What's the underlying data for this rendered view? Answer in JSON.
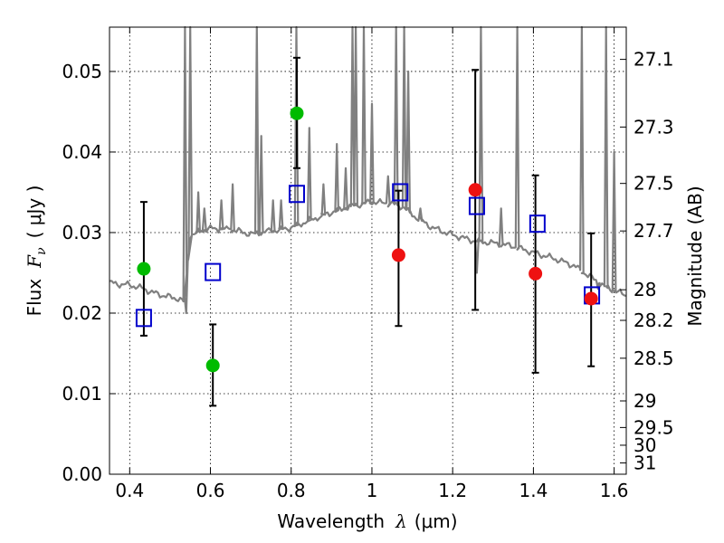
{
  "chart_data": {
    "type": "scatter",
    "xlabel": {
      "prefix": "Wavelength",
      "symbol": "λ",
      "unit": "(μm)"
    },
    "ylabel": {
      "prefix": "Flux",
      "symbol": "F",
      "subscript": "ν",
      "unit": "( μJy )"
    },
    "ylabel_right": "Magnitude (AB)",
    "xlim": [
      0.35,
      1.63
    ],
    "ylim": [
      0.0,
      0.0555
    ],
    "x_ticks": [
      0.4,
      0.6,
      0.8,
      1.0,
      1.2,
      1.4,
      1.6
    ],
    "x_tick_labels": [
      "0.4",
      "0.6",
      "0.8",
      "1",
      "1.2",
      "1.4",
      "1.6"
    ],
    "y_ticks": [
      0.0,
      0.01,
      0.02,
      0.03,
      0.04,
      0.05
    ],
    "y_tick_labels": [
      "0.00",
      "0.01",
      "0.02",
      "0.03",
      "0.04",
      "0.05"
    ],
    "right_axis_ticks": [
      {
        "label": "27.1",
        "flux": 0.0515
      },
      {
        "label": "27.3",
        "flux": 0.0431
      },
      {
        "label": "27.5",
        "flux": 0.0361
      },
      {
        "label": "27.7",
        "flux": 0.0302
      },
      {
        "label": "28",
        "flux": 0.0229
      },
      {
        "label": "28.2",
        "flux": 0.0191
      },
      {
        "label": "28.5",
        "flux": 0.0144
      },
      {
        "label": "29",
        "flux": 0.0091
      },
      {
        "label": "29.5",
        "flux": 0.0058
      },
      {
        "label": "30",
        "flux": 0.0036
      },
      {
        "label": "31",
        "flux": 0.0014
      }
    ],
    "grid": true,
    "colors": {
      "model": "#808080",
      "detection": "#00bb00",
      "low_significance": "#ee1111",
      "model_photometry": "#0000cc",
      "errorbar": "#000000"
    },
    "model_spectrum": {
      "continuum": [
        [
          0.35,
          0.0238
        ],
        [
          0.37,
          0.0236
        ],
        [
          0.4,
          0.0235
        ],
        [
          0.43,
          0.0231
        ],
        [
          0.46,
          0.0225
        ],
        [
          0.49,
          0.0221
        ],
        [
          0.52,
          0.0218
        ],
        [
          0.535,
          0.0214
        ],
        [
          0.55,
          0.0296
        ],
        [
          0.58,
          0.0303
        ],
        [
          0.6,
          0.0305
        ],
        [
          0.65,
          0.0304
        ],
        [
          0.7,
          0.0298
        ],
        [
          0.75,
          0.0302
        ],
        [
          0.8,
          0.0306
        ],
        [
          0.85,
          0.0316
        ],
        [
          0.9,
          0.0325
        ],
        [
          0.95,
          0.0333
        ],
        [
          1.0,
          0.0338
        ],
        [
          1.05,
          0.0336
        ],
        [
          1.08,
          0.0331
        ],
        [
          1.1,
          0.0322
        ],
        [
          1.15,
          0.0306
        ],
        [
          1.2,
          0.0297
        ],
        [
          1.25,
          0.029
        ],
        [
          1.3,
          0.0287
        ],
        [
          1.35,
          0.0283
        ],
        [
          1.4,
          0.0275
        ],
        [
          1.45,
          0.0268
        ],
        [
          1.5,
          0.0259
        ],
        [
          1.55,
          0.0242
        ],
        [
          1.58,
          0.0232
        ],
        [
          1.63,
          0.0222
        ]
      ],
      "lines": [
        [
          0.537,
          0.0555
        ],
        [
          0.55,
          0.0555
        ],
        [
          0.57,
          0.035
        ],
        [
          0.585,
          0.033
        ],
        [
          0.627,
          0.034
        ],
        [
          0.655,
          0.036
        ],
        [
          0.715,
          0.0555
        ],
        [
          0.726,
          0.042
        ],
        [
          0.755,
          0.034
        ],
        [
          0.775,
          0.034
        ],
        [
          0.813,
          0.0555
        ],
        [
          0.845,
          0.043
        ],
        [
          0.88,
          0.036
        ],
        [
          0.913,
          0.041
        ],
        [
          0.935,
          0.038
        ],
        [
          0.952,
          0.0555
        ],
        [
          0.96,
          0.0555
        ],
        [
          0.98,
          0.0555
        ],
        [
          1.0,
          0.046
        ],
        [
          1.04,
          0.037
        ],
        [
          1.06,
          0.0555
        ],
        [
          1.08,
          0.0555
        ],
        [
          1.09,
          0.05
        ],
        [
          1.12,
          0.033
        ],
        [
          1.27,
          0.0555
        ],
        [
          1.32,
          0.033
        ],
        [
          1.36,
          0.0555
        ],
        [
          1.52,
          0.0555
        ],
        [
          1.58,
          0.0555
        ],
        [
          1.6,
          0.04
        ]
      ],
      "dips": [
        [
          0.54,
          0.02
        ],
        [
          1.26,
          0.025
        ],
        [
          1.56,
          0.023
        ]
      ]
    },
    "detections": [
      {
        "x": 0.435,
        "y": 0.0255
      },
      {
        "x": 0.606,
        "y": 0.0135
      },
      {
        "x": 0.814,
        "y": 0.0448
      }
    ],
    "low_significance": [
      {
        "x": 1.066,
        "y": 0.0272
      },
      {
        "x": 1.256,
        "y": 0.0353
      },
      {
        "x": 1.405,
        "y": 0.0249
      },
      {
        "x": 1.543,
        "y": 0.0218
      }
    ],
    "errorbars": [
      {
        "x": 0.435,
        "low": 0.0172,
        "high": 0.0338
      },
      {
        "x": 0.606,
        "low": 0.0085,
        "high": 0.0186
      },
      {
        "x": 0.814,
        "low": 0.038,
        "high": 0.0517
      },
      {
        "x": 1.066,
        "low": 0.0184,
        "high": 0.0352
      },
      {
        "x": 1.256,
        "low": 0.0204,
        "high": 0.0502
      },
      {
        "x": 1.405,
        "low": 0.0126,
        "high": 0.0371
      },
      {
        "x": 1.543,
        "low": 0.0134,
        "high": 0.0299
      }
    ],
    "model_photometry": [
      {
        "x": 0.435,
        "y": 0.0194
      },
      {
        "x": 0.606,
        "y": 0.0251
      },
      {
        "x": 0.814,
        "y": 0.0348
      },
      {
        "x": 1.07,
        "y": 0.035
      },
      {
        "x": 1.26,
        "y": 0.0333
      },
      {
        "x": 1.41,
        "y": 0.0311
      },
      {
        "x": 1.545,
        "y": 0.0222
      }
    ]
  }
}
